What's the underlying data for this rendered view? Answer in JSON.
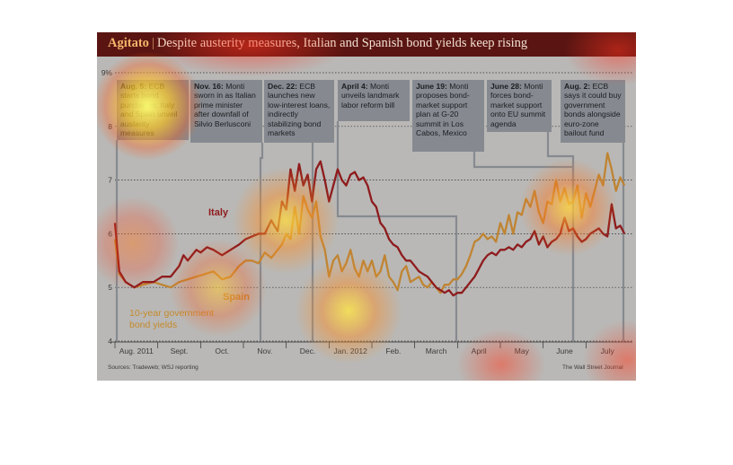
{
  "header": {
    "title_bold": "Agitato",
    "title_sep": "|",
    "title_rest": "Despite austerity measures, Italian and Spanish bond yields keep rising"
  },
  "chart_data": {
    "type": "line",
    "title": "Agitato | Despite austerity measures, Italian and Spanish bond yields keep rising",
    "ylabel": "10-year government bond yields",
    "ylim": [
      4,
      9
    ],
    "yticks": [
      "4",
      "5",
      "6",
      "7",
      "8",
      "9%"
    ],
    "xticks": [
      "Aug. 2011",
      "Sept.",
      "Oct.",
      "Nov.",
      "Dec.",
      "Jan. 2012",
      "Feb.",
      "March",
      "April",
      "May",
      "June",
      "July"
    ],
    "grid": true,
    "series": [
      {
        "name": "Italy",
        "color": "#8e1b1d",
        "points": [
          [
            0,
            6.2
          ],
          [
            2,
            5.3
          ],
          [
            5,
            5.1
          ],
          [
            9,
            5.0
          ],
          [
            13,
            5.1
          ],
          [
            18,
            5.1
          ],
          [
            22,
            5.2
          ],
          [
            26,
            5.2
          ],
          [
            30,
            5.4
          ],
          [
            32,
            5.6
          ],
          [
            34,
            5.5
          ],
          [
            36,
            5.6
          ],
          [
            38,
            5.7
          ],
          [
            40,
            5.65
          ],
          [
            43,
            5.75
          ],
          [
            46,
            5.7
          ],
          [
            50,
            5.6
          ],
          [
            54,
            5.7
          ],
          [
            58,
            5.8
          ],
          [
            61,
            5.9
          ],
          [
            64,
            5.95
          ],
          [
            67,
            6.0
          ],
          [
            70,
            6.0
          ],
          [
            73,
            6.25
          ],
          [
            76,
            6.05
          ],
          [
            78,
            6.6
          ],
          [
            80,
            6.45
          ],
          [
            82,
            7.2
          ],
          [
            84,
            6.8
          ],
          [
            86,
            7.3
          ],
          [
            88,
            6.9
          ],
          [
            90,
            7.1
          ],
          [
            92,
            6.6
          ],
          [
            94,
            7.2
          ],
          [
            96,
            7.35
          ],
          [
            98,
            7.0
          ],
          [
            100,
            6.6
          ],
          [
            102,
            6.9
          ],
          [
            104,
            7.2
          ],
          [
            106,
            7.0
          ],
          [
            108,
            6.9
          ],
          [
            110,
            7.1
          ],
          [
            112,
            7.15
          ],
          [
            114,
            7.0
          ],
          [
            116,
            7.05
          ],
          [
            118,
            6.9
          ],
          [
            120,
            6.6
          ],
          [
            122,
            6.5
          ],
          [
            124,
            6.2
          ],
          [
            126,
            6.1
          ],
          [
            128,
            5.9
          ],
          [
            130,
            5.8
          ],
          [
            132,
            5.75
          ],
          [
            134,
            5.6
          ],
          [
            136,
            5.5
          ],
          [
            138,
            5.5
          ],
          [
            140,
            5.4
          ],
          [
            142,
            5.3
          ],
          [
            144,
            5.25
          ],
          [
            146,
            5.2
          ],
          [
            148,
            5.1
          ],
          [
            150,
            5.0
          ],
          [
            152,
            4.95
          ],
          [
            154,
            4.9
          ],
          [
            156,
            4.95
          ],
          [
            158,
            4.85
          ],
          [
            160,
            4.9
          ],
          [
            162,
            4.9
          ],
          [
            164,
            5.0
          ],
          [
            166,
            5.1
          ],
          [
            168,
            5.2
          ],
          [
            170,
            5.35
          ],
          [
            172,
            5.5
          ],
          [
            174,
            5.6
          ],
          [
            176,
            5.65
          ],
          [
            178,
            5.6
          ],
          [
            180,
            5.7
          ],
          [
            182,
            5.7
          ],
          [
            184,
            5.75
          ],
          [
            186,
            5.7
          ],
          [
            188,
            5.8
          ],
          [
            190,
            5.75
          ],
          [
            192,
            5.85
          ],
          [
            194,
            5.9
          ],
          [
            196,
            6.05
          ],
          [
            198,
            5.8
          ],
          [
            200,
            5.95
          ],
          [
            202,
            5.75
          ],
          [
            204,
            5.85
          ],
          [
            206,
            5.9
          ],
          [
            208,
            6.0
          ],
          [
            210,
            6.3
          ],
          [
            212,
            6.05
          ],
          [
            214,
            6.1
          ],
          [
            216,
            5.95
          ],
          [
            218,
            5.85
          ],
          [
            220,
            5.9
          ],
          [
            222,
            6.0
          ],
          [
            224,
            6.05
          ],
          [
            226,
            6.1
          ],
          [
            228,
            6.0
          ],
          [
            230,
            5.95
          ],
          [
            232,
            6.55
          ],
          [
            234,
            6.1
          ],
          [
            236,
            6.15
          ],
          [
            238,
            6.0
          ]
        ]
      },
      {
        "name": "Spain",
        "color": "#c08432",
        "points": [
          [
            0,
            5.9
          ],
          [
            2,
            5.25
          ],
          [
            5,
            5.1
          ],
          [
            9,
            5.0
          ],
          [
            13,
            5.05
          ],
          [
            18,
            5.1
          ],
          [
            22,
            5.05
          ],
          [
            26,
            5.0
          ],
          [
            30,
            5.1
          ],
          [
            34,
            5.15
          ],
          [
            38,
            5.2
          ],
          [
            42,
            5.25
          ],
          [
            46,
            5.3
          ],
          [
            50,
            5.15
          ],
          [
            54,
            5.2
          ],
          [
            58,
            5.4
          ],
          [
            61,
            5.5
          ],
          [
            64,
            5.5
          ],
          [
            67,
            5.45
          ],
          [
            70,
            5.65
          ],
          [
            73,
            5.55
          ],
          [
            76,
            5.7
          ],
          [
            78,
            5.8
          ],
          [
            80,
            6.0
          ],
          [
            82,
            5.9
          ],
          [
            84,
            6.5
          ],
          [
            86,
            6.0
          ],
          [
            88,
            6.7
          ],
          [
            90,
            6.45
          ],
          [
            92,
            6.3
          ],
          [
            94,
            6.6
          ],
          [
            96,
            5.95
          ],
          [
            98,
            5.7
          ],
          [
            100,
            5.2
          ],
          [
            102,
            5.5
          ],
          [
            104,
            5.6
          ],
          [
            106,
            5.3
          ],
          [
            108,
            5.45
          ],
          [
            110,
            5.7
          ],
          [
            112,
            5.35
          ],
          [
            114,
            5.2
          ],
          [
            116,
            5.5
          ],
          [
            118,
            5.3
          ],
          [
            120,
            5.5
          ],
          [
            122,
            5.2
          ],
          [
            124,
            5.3
          ],
          [
            126,
            5.6
          ],
          [
            128,
            5.2
          ],
          [
            130,
            5.1
          ],
          [
            132,
            4.95
          ],
          [
            134,
            5.3
          ],
          [
            136,
            5.4
          ],
          [
            138,
            5.1
          ],
          [
            140,
            5.15
          ],
          [
            142,
            5.2
          ],
          [
            144,
            5.05
          ],
          [
            146,
            5.0
          ],
          [
            148,
            5.1
          ],
          [
            150,
            5.0
          ],
          [
            152,
            4.9
          ],
          [
            154,
            5.05
          ],
          [
            156,
            5.05
          ],
          [
            158,
            5.15
          ],
          [
            160,
            5.15
          ],
          [
            162,
            5.25
          ],
          [
            164,
            5.4
          ],
          [
            166,
            5.6
          ],
          [
            168,
            5.85
          ],
          [
            170,
            5.9
          ],
          [
            172,
            6.0
          ],
          [
            174,
            5.9
          ],
          [
            176,
            5.95
          ],
          [
            178,
            5.85
          ],
          [
            180,
            6.2
          ],
          [
            182,
            6.0
          ],
          [
            184,
            6.35
          ],
          [
            186,
            6.0
          ],
          [
            188,
            6.4
          ],
          [
            190,
            6.35
          ],
          [
            192,
            6.65
          ],
          [
            194,
            6.5
          ],
          [
            196,
            6.8
          ],
          [
            198,
            6.4
          ],
          [
            200,
            6.2
          ],
          [
            202,
            6.6
          ],
          [
            204,
            6.55
          ],
          [
            206,
            7.0
          ],
          [
            208,
            6.6
          ],
          [
            210,
            6.85
          ],
          [
            212,
            6.55
          ],
          [
            214,
            6.6
          ],
          [
            216,
            6.9
          ],
          [
            218,
            6.3
          ],
          [
            220,
            6.75
          ],
          [
            222,
            6.5
          ],
          [
            224,
            6.8
          ],
          [
            226,
            7.1
          ],
          [
            228,
            6.9
          ],
          [
            230,
            7.5
          ],
          [
            232,
            7.2
          ],
          [
            234,
            6.8
          ],
          [
            236,
            7.05
          ],
          [
            238,
            6.9
          ]
        ]
      }
    ],
    "x_domain": [
      0,
      240
    ],
    "annotations": [
      {
        "id": "aug5",
        "date": "Aug. 5:",
        "text": "ECB starts bond purchases; Italy and Spain unveil austerity measures"
      },
      {
        "id": "nov16",
        "date": "Nov. 16:",
        "text": "Monti sworn in as Italian prime minister after downfall of Silvio Berlusconi"
      },
      {
        "id": "dec22",
        "date": "Dec. 22:",
        "text": "ECB launches new low-interest loans, indirectly stabilizing bond markets"
      },
      {
        "id": "apr4",
        "date": "April 4:",
        "text": "Monti unveils landmark labor reform bill"
      },
      {
        "id": "jun19",
        "date": "June 19:",
        "text": "Monti proposes bond-market support plan at G-20 summit in Los Cabos, Mexico"
      },
      {
        "id": "jun28",
        "date": "June 28:",
        "text": "Monti forces bond-market support onto EU summit agenda"
      },
      {
        "id": "aug2",
        "date": "Aug. 2:",
        "text": "ECB says it could buy government bonds alongside euro-zone bailout fund"
      }
    ]
  },
  "labels": {
    "italy": "Italy",
    "spain": "Spain",
    "legend": "10-year government bond yields"
  },
  "footer": {
    "source": "Sources: Tradeweb; WSJ reporting",
    "credit": "The Wall Street Journal"
  },
  "colors": {
    "background": "#b9b8b6",
    "title_bar": "#5a1512",
    "annotation": "#868a90",
    "italy": "#8e1b1d",
    "spain": "#c08432"
  }
}
